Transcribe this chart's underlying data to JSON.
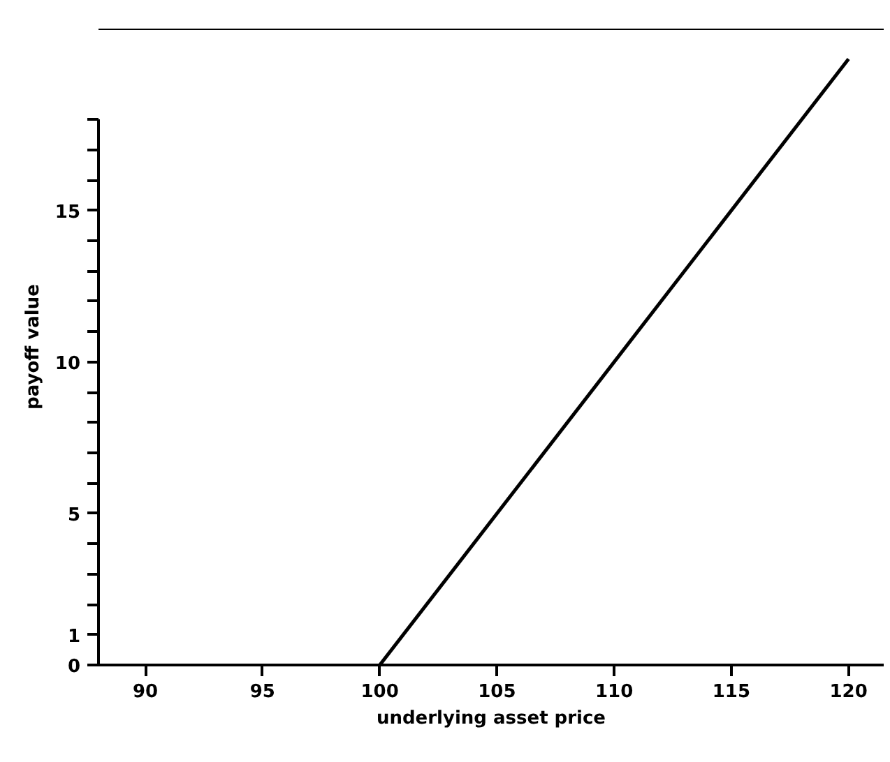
{
  "chart_data": {
    "type": "line",
    "xlabel": "underlying asset price",
    "ylabel": "payoff value",
    "x": [
      100,
      120
    ],
    "values": [
      0,
      20
    ],
    "color": "#000000",
    "xlim": [
      88,
      121.5
    ],
    "ylim": [
      0,
      21
    ],
    "xticks": [
      90,
      95,
      100,
      105,
      110,
      115,
      120
    ],
    "yticks": [
      0,
      1,
      {
        "value": 2,
        "label": null
      },
      {
        "value": 3,
        "label": null
      },
      {
        "value": 4,
        "label": null
      },
      5,
      {
        "value": 6,
        "label": null
      },
      {
        "value": 7,
        "label": null
      },
      {
        "value": 8,
        "label": null
      },
      {
        "value": 9,
        "label": null
      },
      10,
      {
        "value": 11,
        "label": null
      },
      {
        "value": 12,
        "label": null
      },
      {
        "value": 13,
        "label": null
      },
      {
        "value": 14,
        "label": null
      },
      15,
      {
        "value": 16,
        "label": null
      },
      {
        "value": 17,
        "label": null
      },
      {
        "value": 18,
        "label": null
      }
    ],
    "ref_lines": [
      {
        "axis": "y",
        "value": 21,
        "color": "#000000"
      }
    ],
    "grid": false,
    "marker": "none",
    "line_style": "solid"
  }
}
